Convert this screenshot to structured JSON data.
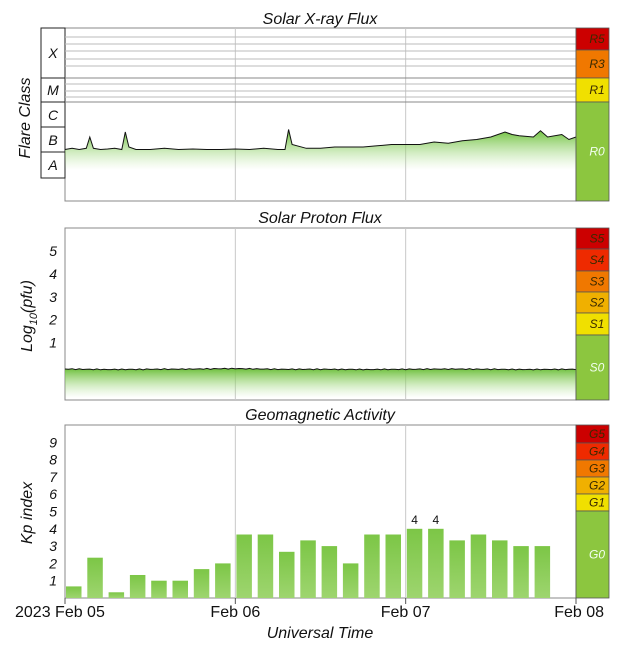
{
  "chart_data": [
    {
      "type": "area",
      "title": "Solar X-ray Flux",
      "ylabel": "Flare Class",
      "y_classes": [
        "A",
        "B",
        "C",
        "M",
        "X"
      ],
      "x_range": [
        "2023-02-05T00:00",
        "2023-02-08T00:00"
      ],
      "series": [
        {
          "x_hours": [
            0,
            1,
            2,
            3,
            3.5,
            4,
            5,
            6,
            7,
            8,
            8.5,
            9,
            10,
            12,
            14,
            16,
            18,
            20,
            22,
            24,
            26,
            28,
            30,
            31,
            31.5,
            32,
            34,
            36,
            38,
            40,
            42,
            44,
            46,
            48,
            50,
            52,
            54,
            56,
            58,
            60,
            62,
            63,
            64,
            66,
            67,
            68,
            70,
            71,
            72
          ],
          "class_value": [
            2.1,
            2.15,
            2.1,
            2.15,
            2.6,
            2.15,
            2.1,
            2.12,
            2.15,
            2.1,
            2.8,
            2.2,
            2.1,
            2.1,
            2.15,
            2.1,
            2.12,
            2.1,
            2.1,
            2.12,
            2.1,
            2.15,
            2.1,
            2.1,
            2.9,
            2.3,
            2.15,
            2.15,
            2.2,
            2.2,
            2.2,
            2.25,
            2.3,
            2.3,
            2.3,
            2.4,
            2.35,
            2.45,
            2.5,
            2.6,
            2.8,
            2.7,
            2.65,
            2.6,
            2.85,
            2.6,
            2.7,
            2.5,
            2.6
          ]
        }
      ],
      "scale_labels": [
        "R5",
        "R3",
        "R1",
        "R0"
      ],
      "scale_colors": [
        "#cc0000",
        "#f07800",
        "#f0e000",
        "#8cc63f"
      ],
      "grid": true
    },
    {
      "type": "area",
      "title": "Solar Proton Flux",
      "ylabel": "Log10(pfu)",
      "ylim": [
        -1.5,
        6
      ],
      "yticks": [
        1,
        2,
        3,
        4,
        5
      ],
      "x_range": [
        "2023-02-05T00:00",
        "2023-02-08T00:00"
      ],
      "series": [
        {
          "x_hours": [
            0,
            6,
            12,
            18,
            24,
            30,
            36,
            42,
            48,
            54,
            60,
            66,
            72
          ],
          "log_value": [
            -0.15,
            -0.17,
            -0.16,
            -0.15,
            -0.13,
            -0.16,
            -0.16,
            -0.17,
            -0.16,
            -0.15,
            -0.16,
            -0.17,
            -0.16
          ]
        }
      ],
      "scale_labels": [
        "S5",
        "S4",
        "S3",
        "S2",
        "S1",
        "S0"
      ],
      "scale_colors": [
        "#cc0000",
        "#ee2a00",
        "#f07800",
        "#f0b000",
        "#f0e000",
        "#8cc63f"
      ],
      "grid": true
    },
    {
      "type": "bar",
      "title": "Geomagnetic Activity",
      "ylabel": "Kp index",
      "ylim": [
        0,
        10
      ],
      "yticks": [
        1,
        2,
        3,
        4,
        5,
        6,
        7,
        8,
        9
      ],
      "values": [
        0.67,
        2.33,
        0.33,
        1.33,
        1.0,
        1.0,
        1.67,
        2.0,
        3.67,
        3.67,
        2.67,
        3.33,
        3.0,
        2.0,
        3.67,
        3.67,
        4.0,
        4.0,
        3.33,
        3.67,
        3.33,
        3.0,
        3.0
      ],
      "bar_labels": [
        "",
        "",
        "",
        "",
        "",
        "",
        "",
        "",
        "",
        "",
        "",
        "",
        "",
        "",
        "",
        "",
        "4",
        "4",
        "",
        "",
        "",
        "",
        ""
      ],
      "scale_labels": [
        "G5",
        "G4",
        "G3",
        "G2",
        "G1",
        "G0"
      ],
      "scale_colors": [
        "#cc0000",
        "#ee2a00",
        "#f07800",
        "#f0b000",
        "#f0e000",
        "#8cc63f"
      ],
      "xlabel": "Universal Time",
      "x_ticks": [
        "2023 Feb 05",
        "Feb 06",
        "Feb 07",
        "Feb 08"
      ],
      "grid": true
    }
  ]
}
